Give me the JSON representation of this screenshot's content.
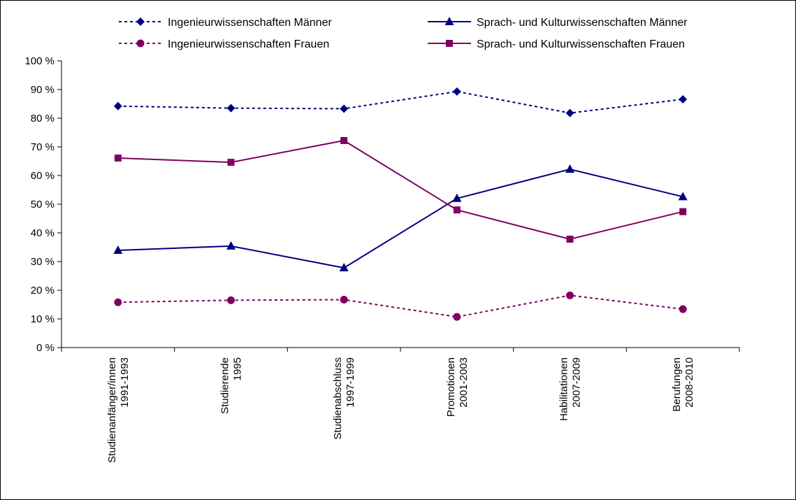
{
  "chart_data": {
    "type": "line",
    "categories": [
      [
        "Studienanfänger/innen",
        "1991-1993"
      ],
      [
        "Studierende",
        "1995"
      ],
      [
        "Studienabschluss",
        "1997-1999"
      ],
      [
        "Promotionen",
        "2001-2003"
      ],
      [
        "Habilitationen",
        "2007-2009"
      ],
      [
        "Berufungen",
        "2008-2010"
      ]
    ],
    "ylim": [
      0,
      100
    ],
    "yticks": [
      0,
      10,
      20,
      30,
      40,
      50,
      60,
      70,
      80,
      90,
      100
    ],
    "ytick_labels": [
      "0 %",
      "10 %",
      "20 %",
      "30 %",
      "40 %",
      "50 %",
      "60 %",
      "70 %",
      "80 %",
      "90 %",
      "100 %"
    ],
    "grid": false,
    "legend_position": "top",
    "series": [
      {
        "name": "Ingenieurwissenschaften Männer",
        "values": [
          84.2,
          83.5,
          83.3,
          89.3,
          81.8,
          86.6
        ],
        "color": "#000080",
        "line_style": "dotted",
        "marker": "diamond"
      },
      {
        "name": "Sprach- und Kulturwissenschaften Männer",
        "values": [
          33.9,
          35.4,
          27.8,
          52.0,
          62.2,
          52.6
        ],
        "color": "#000080",
        "line_style": "solid",
        "marker": "triangle"
      },
      {
        "name": "Ingenieurwissenschaften Frauen",
        "values": [
          15.8,
          16.5,
          16.7,
          10.7,
          18.2,
          13.4
        ],
        "color": "#800060",
        "line_style": "dotted",
        "marker": "circle"
      },
      {
        "name": "Sprach- und Kulturwissenschaften Frauen",
        "values": [
          66.1,
          64.6,
          72.2,
          48.0,
          37.8,
          47.4
        ],
        "color": "#800060",
        "line_style": "solid",
        "marker": "square"
      }
    ]
  }
}
